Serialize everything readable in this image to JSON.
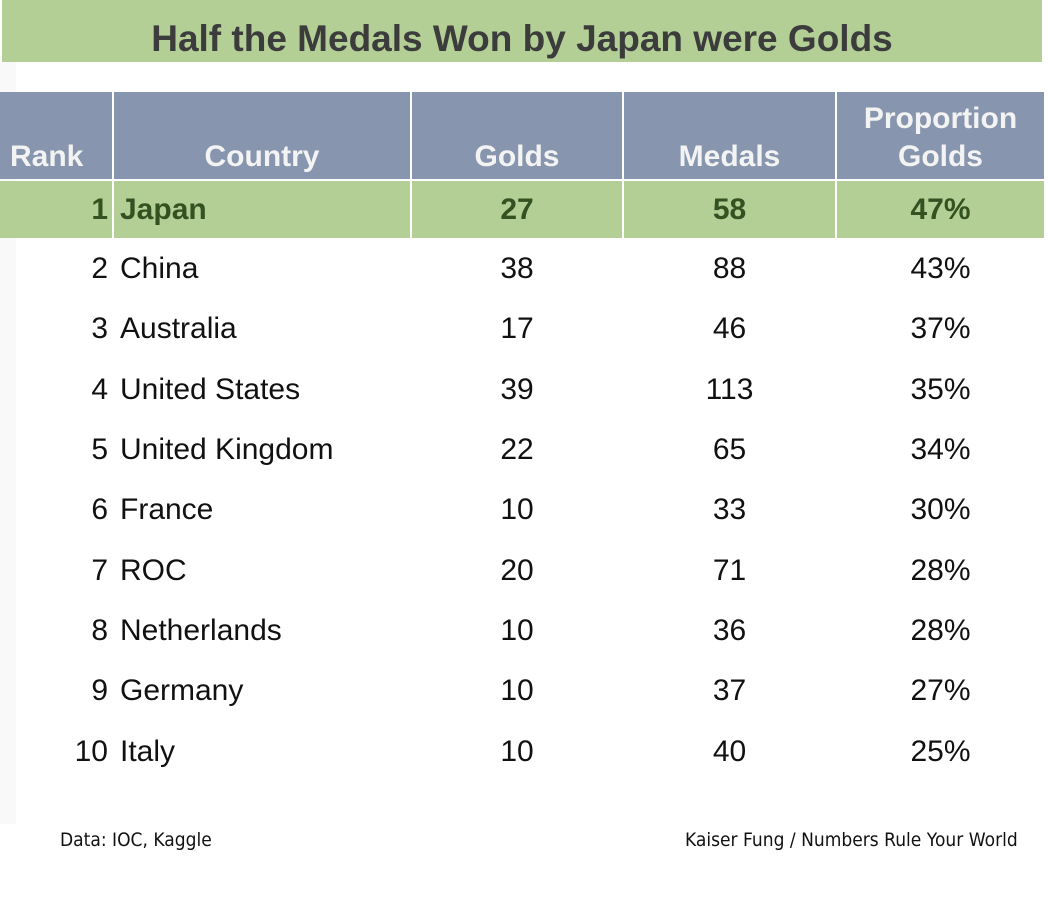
{
  "title": "Half the Medals Won by Japan were Golds",
  "chart_data": {
    "type": "table",
    "title": "Half the Medals Won by Japan were Golds",
    "columns": [
      "Rank",
      "Country",
      "Golds",
      "Medals",
      "Proportion Golds"
    ],
    "rows": [
      {
        "rank": "1",
        "country": "Japan",
        "golds": "27",
        "medals": "58",
        "prop": "47%",
        "highlight": true
      },
      {
        "rank": "2",
        "country": "China",
        "golds": "38",
        "medals": "88",
        "prop": "43%"
      },
      {
        "rank": "3",
        "country": "Australia",
        "golds": "17",
        "medals": "46",
        "prop": "37%"
      },
      {
        "rank": "4",
        "country": "United States",
        "golds": "39",
        "medals": "113",
        "prop": "35%"
      },
      {
        "rank": "5",
        "country": "United Kingdom",
        "golds": "22",
        "medals": "65",
        "prop": "34%"
      },
      {
        "rank": "6",
        "country": "France",
        "golds": "10",
        "medals": "33",
        "prop": "30%"
      },
      {
        "rank": "7",
        "country": "ROC",
        "golds": "20",
        "medals": "71",
        "prop": "28%"
      },
      {
        "rank": "8",
        "country": "Netherlands",
        "golds": "10",
        "medals": "36",
        "prop": "28%"
      },
      {
        "rank": "9",
        "country": "Germany",
        "golds": "10",
        "medals": "37",
        "prop": "27%"
      },
      {
        "rank": "10",
        "country": "Italy",
        "golds": "10",
        "medals": "40",
        "prop": "25%"
      }
    ]
  },
  "header": {
    "rank": "Rank",
    "country": "Country",
    "golds": "Golds",
    "medals": "Medals",
    "prop_line1": "Proportion",
    "prop_line2": "Golds"
  },
  "footer": {
    "source": "Data: IOC, Kaggle",
    "credit": "Kaiser Fung / Numbers Rule Your World"
  },
  "colors": {
    "highlight": "#b3cf96",
    "header": "#8796ae"
  }
}
